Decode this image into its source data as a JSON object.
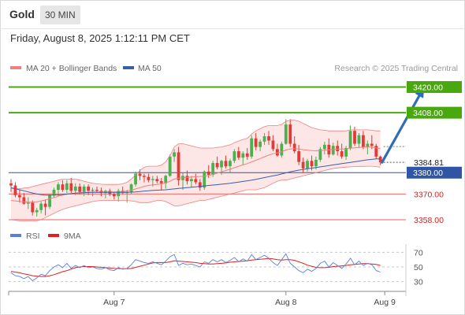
{
  "header": {
    "asset": "Gold",
    "timeframe": "30 MIN",
    "datetime": "Friday, August 8, 2025 1:12:11 PM CET"
  },
  "watermark": "Research © 2025 Trading Central",
  "colors": {
    "bollinger": "#f08080",
    "bollinger_fill": "#fde2e2",
    "ma50": "#3a5fa8",
    "up_candle": "#4caf50",
    "down_candle": "#e53935",
    "target_line": "#4aa80f",
    "pivot_line": "#2f55a4",
    "support_line": "#f08080",
    "arrow": "#2f6db5",
    "rsi": "#5b7fd8",
    "rsi_ma": "#e02020"
  },
  "chart_data": [
    {
      "type": "candlestick",
      "title": "",
      "legend": [
        {
          "name": "MA 20 + Bollinger Bands",
          "color": "#f08080"
        },
        {
          "name": "MA 50",
          "color": "#3a5fa8"
        }
      ],
      "ylim": [
        3354.7,
        3424.6
      ],
      "x_ticks": [
        {
          "label": "Aug 7",
          "index": 24
        },
        {
          "label": "Aug 8",
          "index": 64
        },
        {
          "label": "Aug 9",
          "index": 87
        }
      ],
      "current_price": {
        "label": "3384.81",
        "value": 3384.81
      },
      "levels": [
        {
          "label": "3420.00",
          "value": 3420.0,
          "kind": "target"
        },
        {
          "label": "3408.00",
          "value": 3408.0,
          "kind": "target"
        },
        {
          "label": "3380.00",
          "value": 3380.0,
          "kind": "pivot"
        },
        {
          "label": "3370.00",
          "value": 3370.0,
          "kind": "support"
        },
        {
          "label": "3358.00",
          "value": 3358.0,
          "kind": "support"
        }
      ],
      "arrow": {
        "from_index": 86,
        "from_value": 3384.8,
        "to_index": 96,
        "to_value": 3420.0
      },
      "candles": [
        [
          3375.0,
          3377.0,
          3371.0,
          3374.0
        ],
        [
          3374.0,
          3375.5,
          3368.5,
          3369.5
        ],
        [
          3369.5,
          3372.0,
          3366.0,
          3368.5
        ],
        [
          3368.5,
          3370.5,
          3365.0,
          3365.5
        ],
        [
          3365.5,
          3368.5,
          3363.0,
          3366.0
        ],
        [
          3366.0,
          3367.0,
          3360.0,
          3361.5
        ],
        [
          3361.5,
          3363.5,
          3359.5,
          3362.5
        ],
        [
          3362.5,
          3366.5,
          3361.0,
          3365.5
        ],
        [
          3365.5,
          3367.5,
          3360.0,
          3364.0
        ],
        [
          3364.0,
          3370.0,
          3363.0,
          3369.5
        ],
        [
          3369.5,
          3373.0,
          3368.5,
          3372.0
        ],
        [
          3372.0,
          3375.5,
          3369.0,
          3374.5
        ],
        [
          3374.5,
          3376.5,
          3371.0,
          3372.0
        ],
        [
          3372.0,
          3376.5,
          3370.5,
          3375.0
        ],
        [
          3375.0,
          3377.5,
          3370.5,
          3371.5
        ],
        [
          3371.5,
          3375.0,
          3369.5,
          3373.5
        ],
        [
          3373.5,
          3375.0,
          3370.0,
          3371.0
        ],
        [
          3371.0,
          3374.5,
          3369.0,
          3373.5
        ],
        [
          3373.5,
          3374.5,
          3369.5,
          3371.5
        ],
        [
          3371.5,
          3373.0,
          3369.0,
          3372.0
        ],
        [
          3372.0,
          3373.5,
          3370.5,
          3371.5
        ],
        [
          3371.5,
          3373.0,
          3369.0,
          3370.5
        ],
        [
          3370.5,
          3372.0,
          3368.0,
          3371.5
        ],
        [
          3371.5,
          3372.5,
          3369.0,
          3370.0
        ],
        [
          3370.0,
          3371.0,
          3367.5,
          3369.0
        ],
        [
          3369.0,
          3372.5,
          3366.5,
          3371.5
        ],
        [
          3371.5,
          3373.5,
          3370.0,
          3370.5
        ],
        [
          3370.5,
          3372.0,
          3366.0,
          3371.0
        ],
        [
          3371.0,
          3375.0,
          3370.0,
          3374.5
        ],
        [
          3374.5,
          3380.5,
          3373.5,
          3379.5
        ],
        [
          3379.5,
          3381.5,
          3376.5,
          3378.5
        ],
        [
          3378.5,
          3379.5,
          3375.5,
          3378.0
        ],
        [
          3378.0,
          3379.5,
          3375.5,
          3376.5
        ],
        [
          3376.5,
          3378.5,
          3373.5,
          3377.0
        ],
        [
          3377.0,
          3378.5,
          3375.0,
          3376.0
        ],
        [
          3376.0,
          3377.5,
          3372.0,
          3375.0
        ],
        [
          3375.0,
          3379.0,
          3372.5,
          3378.5
        ],
        [
          3378.5,
          3388.5,
          3378.0,
          3387.5
        ],
        [
          3387.5,
          3391.0,
          3385.0,
          3389.5
        ],
        [
          3389.5,
          3392.0,
          3374.0,
          3376.5
        ],
        [
          3376.5,
          3380.0,
          3372.0,
          3378.5
        ],
        [
          3378.5,
          3381.0,
          3374.5,
          3376.0
        ],
        [
          3376.0,
          3378.5,
          3373.0,
          3377.0
        ],
        [
          3377.0,
          3379.5,
          3374.5,
          3375.5
        ],
        [
          3375.5,
          3377.0,
          3371.5,
          3373.0
        ],
        [
          3373.0,
          3381.0,
          3372.0,
          3380.5
        ],
        [
          3380.5,
          3383.5,
          3377.5,
          3379.0
        ],
        [
          3379.0,
          3385.5,
          3378.0,
          3384.5
        ],
        [
          3384.5,
          3387.5,
          3381.5,
          3382.5
        ],
        [
          3382.5,
          3386.0,
          3379.0,
          3385.5
        ],
        [
          3385.5,
          3388.0,
          3382.0,
          3383.0
        ],
        [
          3383.0,
          3386.5,
          3380.0,
          3385.5
        ],
        [
          3385.5,
          3391.0,
          3384.5,
          3390.0
        ],
        [
          3390.0,
          3392.0,
          3386.0,
          3387.0
        ],
        [
          3387.0,
          3390.0,
          3383.5,
          3389.0
        ],
        [
          3389.0,
          3391.5,
          3386.0,
          3387.5
        ],
        [
          3387.5,
          3397.5,
          3386.5,
          3396.0
        ],
        [
          3396.0,
          3398.5,
          3390.5,
          3392.0
        ],
        [
          3392.0,
          3395.5,
          3390.0,
          3394.5
        ],
        [
          3394.5,
          3398.5,
          3393.0,
          3397.0
        ],
        [
          3397.0,
          3399.5,
          3393.0,
          3395.0
        ],
        [
          3395.0,
          3397.5,
          3390.0,
          3391.0
        ],
        [
          3391.0,
          3393.5,
          3387.5,
          3388.0
        ],
        [
          3388.0,
          3394.5,
          3387.0,
          3393.5
        ],
        [
          3393.5,
          3405.0,
          3393.0,
          3402.5
        ],
        [
          3402.5,
          3405.0,
          3392.0,
          3393.5
        ],
        [
          3393.5,
          3397.0,
          3389.0,
          3390.0
        ],
        [
          3390.0,
          3393.0,
          3383.5,
          3385.0
        ],
        [
          3385.0,
          3387.0,
          3380.0,
          3382.0
        ],
        [
          3382.0,
          3386.5,
          3380.5,
          3385.5
        ],
        [
          3385.5,
          3388.0,
          3381.0,
          3383.0
        ],
        [
          3383.0,
          3387.5,
          3381.5,
          3386.0
        ],
        [
          3386.0,
          3392.0,
          3385.0,
          3391.0
        ],
        [
          3391.0,
          3394.5,
          3388.5,
          3393.0
        ],
        [
          3393.0,
          3396.0,
          3387.0,
          3388.5
        ],
        [
          3388.5,
          3394.0,
          3388.0,
          3392.5
        ],
        [
          3392.5,
          3395.0,
          3388.0,
          3390.0
        ],
        [
          3390.0,
          3393.5,
          3386.5,
          3387.5
        ],
        [
          3387.5,
          3392.5,
          3386.0,
          3391.5
        ],
        [
          3391.5,
          3402.0,
          3390.5,
          3399.5
        ],
        [
          3399.5,
          3401.5,
          3392.5,
          3393.5
        ],
        [
          3393.5,
          3398.5,
          3391.5,
          3397.5
        ],
        [
          3397.5,
          3399.5,
          3391.0,
          3392.0
        ],
        [
          3392.0,
          3395.0,
          3388.5,
          3393.5
        ],
        [
          3393.5,
          3397.5,
          3391.0,
          3392.5
        ],
        [
          3392.5,
          3393.5,
          3386.5,
          3387.5
        ],
        [
          3387.5,
          3388.0,
          3383.5,
          3384.8
        ]
      ],
      "ma20": [
        3367.0,
        3366.8,
        3366.6,
        3366.4,
        3366.2,
        3366.2,
        3366.4,
        3366.8,
        3367.2,
        3367.8,
        3368.4,
        3369.0,
        3369.5,
        3369.9,
        3370.2,
        3370.4,
        3370.6,
        3370.8,
        3370.9,
        3371.0,
        3371.0,
        3371.0,
        3371.0,
        3371.0,
        3371.0,
        3371.0,
        3371.2,
        3371.4,
        3371.8,
        3372.4,
        3373.0,
        3373.6,
        3374.0,
        3374.3,
        3374.5,
        3374.7,
        3375.2,
        3376.0,
        3377.0,
        3377.4,
        3377.6,
        3377.8,
        3378.0,
        3378.1,
        3378.2,
        3378.4,
        3378.7,
        3379.2,
        3379.8,
        3380.4,
        3381.0,
        3381.6,
        3382.3,
        3383.0,
        3383.6,
        3384.2,
        3385.0,
        3385.8,
        3386.6,
        3387.4,
        3388.2,
        3388.8,
        3389.2,
        3389.8,
        3390.6,
        3391.0,
        3391.2,
        3391.0,
        3390.7,
        3390.5,
        3390.3,
        3390.2,
        3390.3,
        3390.5,
        3390.6,
        3390.8,
        3391.0,
        3391.0,
        3391.1,
        3391.4,
        3391.6,
        3391.8,
        3391.9,
        3392.0,
        3391.9,
        3391.6,
        3391.2
      ],
      "bb_upper": [
        3372.5,
        3372.5,
        3372.5,
        3372.8,
        3373.0,
        3373.5,
        3374.0,
        3374.5,
        3375.0,
        3375.5,
        3376.0,
        3376.5,
        3377.0,
        3377.0,
        3377.0,
        3377.0,
        3376.5,
        3376.0,
        3375.5,
        3375.0,
        3374.8,
        3374.6,
        3374.5,
        3374.5,
        3374.5,
        3374.5,
        3374.8,
        3375.5,
        3377.0,
        3379.0,
        3381.0,
        3382.5,
        3383.0,
        3383.0,
        3383.0,
        3383.5,
        3385.0,
        3388.0,
        3392.0,
        3393.5,
        3393.5,
        3393.0,
        3392.5,
        3392.0,
        3391.5,
        3391.5,
        3391.5,
        3391.5,
        3391.8,
        3392.0,
        3392.5,
        3393.0,
        3394.0,
        3394.8,
        3395.5,
        3396.0,
        3398.0,
        3399.5,
        3400.5,
        3401.5,
        3402.0,
        3402.0,
        3402.0,
        3402.5,
        3404.0,
        3404.5,
        3404.5,
        3404.0,
        3403.0,
        3402.0,
        3401.0,
        3400.5,
        3400.0,
        3399.8,
        3399.5,
        3399.5,
        3399.5,
        3399.5,
        3399.5,
        3400.0,
        3400.0,
        3400.0,
        3400.0,
        3400.0,
        3399.8,
        3399.5,
        3399.5
      ],
      "bb_lower": [
        3358.0,
        3357.8,
        3357.5,
        3357.5,
        3357.5,
        3357.5,
        3357.5,
        3358.0,
        3359.0,
        3360.0,
        3361.0,
        3362.0,
        3362.8,
        3363.5,
        3364.0,
        3364.5,
        3365.0,
        3365.5,
        3366.0,
        3366.5,
        3366.8,
        3367.0,
        3367.0,
        3367.0,
        3367.0,
        3367.0,
        3367.0,
        3367.0,
        3366.8,
        3366.5,
        3366.0,
        3366.0,
        3366.0,
        3366.5,
        3367.0,
        3367.0,
        3366.5,
        3365.5,
        3364.5,
        3364.5,
        3365.0,
        3365.5,
        3366.0,
        3366.5,
        3367.0,
        3367.0,
        3367.5,
        3368.0,
        3368.5,
        3369.0,
        3369.5,
        3370.0,
        3370.5,
        3371.0,
        3371.5,
        3372.0,
        3372.0,
        3372.0,
        3372.5,
        3373.0,
        3374.0,
        3375.0,
        3376.0,
        3376.5,
        3376.5,
        3377.0,
        3377.5,
        3378.0,
        3378.5,
        3379.0,
        3379.5,
        3380.0,
        3380.5,
        3381.0,
        3381.5,
        3382.0,
        3382.2,
        3382.4,
        3382.6,
        3382.7,
        3382.8,
        3382.9,
        3382.9,
        3383.0,
        3383.0,
        3382.8,
        3382.5
      ],
      "ma50": [
        3373.0,
        3372.5,
        3372.0,
        3371.5,
        3371.0,
        3370.5,
        3370.0,
        3369.7,
        3369.5,
        3369.5,
        3369.5,
        3369.6,
        3369.8,
        3370.0,
        3370.2,
        3370.4,
        3370.5,
        3370.6,
        3370.7,
        3370.8,
        3370.8,
        3370.8,
        3370.8,
        3370.8,
        3370.8,
        3370.8,
        3370.8,
        3370.8,
        3370.9,
        3371.0,
        3371.2,
        3371.4,
        3371.5,
        3371.7,
        3371.8,
        3371.9,
        3372.0,
        3372.2,
        3372.4,
        3372.6,
        3372.8,
        3373.0,
        3373.2,
        3373.4,
        3373.6,
        3373.8,
        3374.0,
        3374.2,
        3374.4,
        3374.6,
        3374.8,
        3375.0,
        3375.3,
        3375.6,
        3375.9,
        3376.2,
        3376.5,
        3376.9,
        3377.3,
        3377.7,
        3378.1,
        3378.5,
        3378.9,
        3379.4,
        3379.9,
        3380.4,
        3380.8,
        3381.2,
        3381.5,
        3381.8,
        3382.1,
        3382.4,
        3382.7,
        3383.0,
        3383.3,
        3383.6,
        3383.9,
        3384.2,
        3384.5,
        3384.8,
        3385.1,
        3385.4,
        3385.7,
        3386.0,
        3386.2,
        3386.4,
        3386.4
      ]
    },
    {
      "type": "line",
      "title": "",
      "legend": [
        {
          "name": "RSI",
          "color": "#5b7fd8"
        },
        {
          "name": "9MA",
          "color": "#e02020"
        }
      ],
      "ylim": [
        22,
        78
      ],
      "y_ticks": [
        "70",
        "50",
        "30"
      ],
      "y_tick_values": [
        70,
        50,
        30
      ],
      "series": [
        {
          "name": "RSI",
          "values": [
            42.0,
            38.0,
            37.0,
            34.0,
            37.0,
            31.0,
            35.0,
            40.0,
            38.0,
            45.0,
            50.0,
            53.0,
            49.0,
            55.0,
            48.0,
            52.0,
            49.0,
            52.0,
            49.0,
            50.0,
            48.0,
            47.0,
            49.0,
            46.0,
            45.0,
            49.0,
            47.0,
            48.0,
            53.0,
            60.0,
            58.0,
            56.0,
            55.0,
            57.0,
            55.0,
            53.0,
            58.0,
            64.0,
            67.0,
            52.0,
            55.0,
            53.0,
            54.0,
            52.0,
            50.0,
            57.0,
            55.0,
            60.0,
            57.0,
            60.0,
            56.0,
            59.0,
            63.0,
            57.0,
            61.0,
            58.0,
            67.0,
            60.0,
            63.0,
            66.0,
            62.0,
            56.0,
            52.0,
            60.0,
            68.0,
            55.0,
            50.0,
            45.0,
            42.0,
            47.0,
            44.0,
            48.0,
            55.0,
            58.0,
            50.0,
            56.0,
            52.0,
            48.0,
            54.0,
            62.0,
            53.0,
            58.0,
            52.0,
            55.0,
            53.0,
            45.0,
            43.0
          ]
        },
        {
          "name": "9MA",
          "values": [
            44.0,
            43.0,
            42.0,
            40.5,
            39.5,
            38.0,
            37.5,
            37.0,
            37.0,
            38.0,
            39.5,
            41.5,
            43.5,
            45.0,
            47.0,
            49.0,
            50.0,
            50.5,
            50.5,
            50.5,
            50.0,
            49.5,
            49.0,
            48.5,
            48.0,
            47.8,
            47.6,
            47.5,
            48.0,
            49.5,
            51.0,
            52.5,
            54.0,
            55.5,
            56.0,
            56.0,
            56.0,
            57.0,
            58.5,
            58.0,
            57.5,
            57.0,
            56.5,
            56.0,
            55.0,
            54.5,
            54.0,
            54.0,
            54.5,
            55.0,
            55.5,
            56.5,
            57.0,
            57.5,
            58.0,
            58.5,
            59.5,
            60.0,
            60.5,
            61.0,
            61.5,
            61.0,
            60.0,
            59.5,
            60.0,
            60.0,
            59.0,
            57.0,
            55.0,
            52.5,
            51.0,
            49.5,
            49.0,
            49.0,
            49.5,
            50.5,
            51.0,
            51.5,
            52.0,
            53.0,
            53.5,
            54.0,
            54.5,
            54.5,
            54.0,
            53.5,
            52.0
          ]
        }
      ]
    }
  ]
}
